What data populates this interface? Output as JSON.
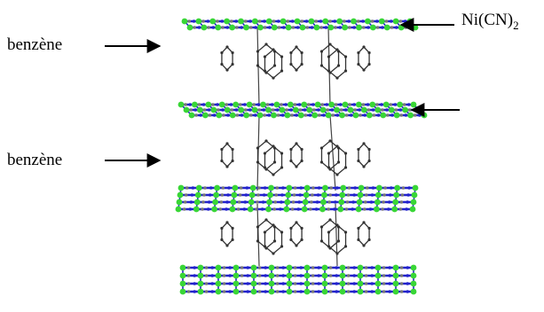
{
  "labels": {
    "benzene_top": "benzène",
    "benzene_middle": "benzène",
    "layer_formula": "Ni(CN)",
    "layer_formula_subscript": "2"
  },
  "colors": {
    "nickel": "#39d636",
    "nitrogen": "#2222cc",
    "carbon": "#777777",
    "benzene": "#333333",
    "arrow": "#000000"
  },
  "structure": {
    "metal_cyanide_layers": 4,
    "benzene_layers": 3,
    "benzene_rings_per_layer": 5
  }
}
